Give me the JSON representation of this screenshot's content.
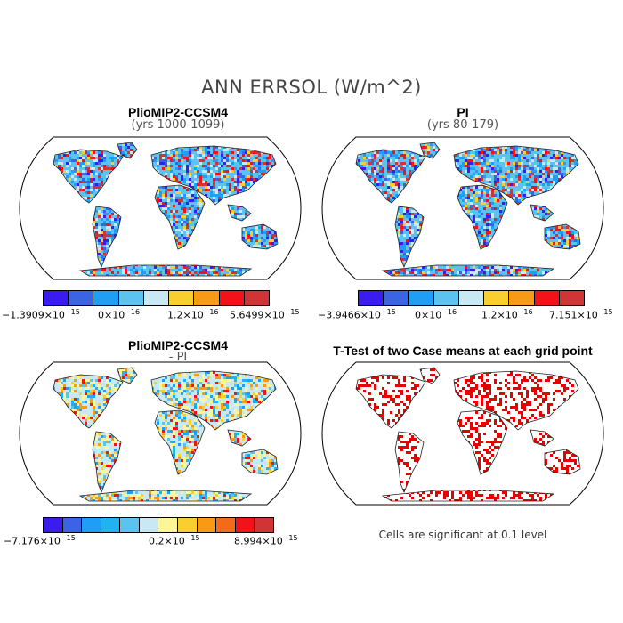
{
  "title": "ANN ERRSOL (W/m^2)",
  "panels": [
    {
      "title": "PlioMIP2-CCSM4",
      "subtitle": "(yrs 1000-1099)",
      "colors": [
        "#3b1cf0",
        "#3c63e6",
        "#1f9ef5",
        "#5cc2ee",
        "#c8e8f4",
        "#f8cf2f",
        "#f99a14",
        "#f4121a",
        "#d03434"
      ],
      "labels": [
        "-1.3909×10-15",
        "0×10-16",
        "1.2×10-16",
        "5.6499×10-15"
      ]
    },
    {
      "title": "PI",
      "subtitle": "(yrs 80-179)",
      "colors": [
        "#3b1cf0",
        "#3c63e6",
        "#1f9ef5",
        "#5cc2ee",
        "#c8e8f4",
        "#f8cf2f",
        "#f99a14",
        "#f4121a",
        "#d03434"
      ],
      "labels": [
        "-3.9466×10-15",
        "0×10-16",
        "1.2×10-16",
        "7.151×10-15"
      ]
    },
    {
      "title": "PlioMIP2-CCSM4",
      "subtitle": "- PI",
      "colors": [
        "#3b1cf0",
        "#3c63e6",
        "#1f9ef5",
        "#1fb4f0",
        "#5cc2ee",
        "#c8e8f4",
        "#fdf59a",
        "#f8cf2f",
        "#f99a14",
        "#f26b1a",
        "#f4121a",
        "#d03434"
      ],
      "labels": [
        "-7.176×10-15",
        "0.2×10-15",
        "8.994×10-15"
      ]
    },
    {
      "title": "T-Test of two Case means at each grid point",
      "note": "Cells are significant at 0.1 level",
      "colors": [
        "#e60000"
      ]
    }
  ]
}
